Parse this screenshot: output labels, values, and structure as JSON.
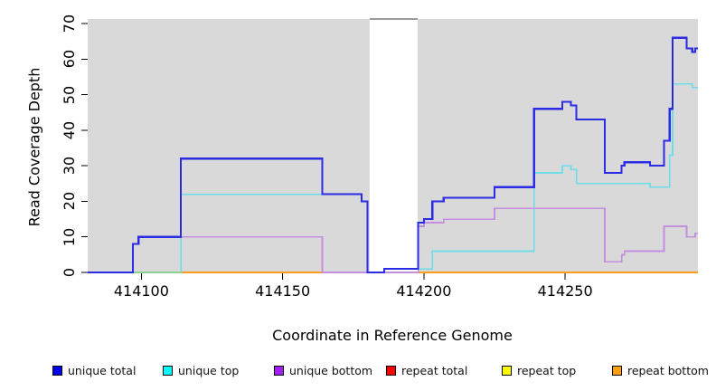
{
  "chart_data": {
    "type": "line",
    "line_style": "step",
    "title": "",
    "xlabel": "Coordinate in Reference Genome",
    "ylabel": "Read Coverage Depth",
    "xlim": [
      414081,
      414297
    ],
    "ylim": [
      0,
      70
    ],
    "x_ticks": [
      414100,
      414150,
      414200,
      414250
    ],
    "y_ticks": [
      0,
      10,
      20,
      30,
      40,
      50,
      60,
      70
    ],
    "plot_bg_color": "#d9d9d9",
    "gap_region": {
      "from": 414180.8,
      "to": 414197.8,
      "color": "#ffffff",
      "top_border_color": "#9b9b9b"
    },
    "legend": [
      {
        "label": "unique total",
        "color": "#0000ee"
      },
      {
        "label": "unique top",
        "color": "#00ffff"
      },
      {
        "label": "unique bottom",
        "color": "#a020f0"
      },
      {
        "label": "repeat total",
        "color": "#ff0000"
      },
      {
        "label": "repeat top",
        "color": "#ffff00"
      },
      {
        "label": "repeat bottom",
        "color": "#ffa013"
      }
    ],
    "series": [
      {
        "name": "repeat total",
        "color": "#ff2222",
        "width": 1.6,
        "steps": [
          [
            414097,
            0
          ]
        ]
      },
      {
        "name": "repeat top",
        "color": "#f0f060",
        "width": 1.6,
        "steps": [
          [
            414097,
            0
          ]
        ]
      },
      {
        "name": "repeat bottom",
        "color": "#ff9d1c",
        "width": 2,
        "steps": [
          [
            414097,
            0
          ]
        ]
      },
      {
        "name": "unique top",
        "color": "#6fdde8",
        "width": 1.7,
        "steps": [
          [
            414081,
            0
          ],
          [
            414114,
            22
          ],
          [
            414178,
            20
          ],
          [
            414180,
            0
          ],
          [
            414186,
            1
          ],
          [
            414203,
            6
          ],
          [
            414239,
            28
          ],
          [
            414249,
            30
          ],
          [
            414252,
            29
          ],
          [
            414254,
            25
          ],
          [
            414280,
            24
          ],
          [
            414287,
            33
          ],
          [
            414288,
            53
          ],
          [
            414295,
            52
          ]
        ]
      },
      {
        "name": "unique-top-over-repeat-top-overlap",
        "color": "#8ccf96",
        "width": 1.8,
        "steps": [
          [
            414097,
            0
          ]
        ],
        "end": 414114
      },
      {
        "name": "unique bottom",
        "color": "#c390e0",
        "width": 1.7,
        "steps": [
          [
            414081,
            0
          ],
          [
            414097,
            8
          ],
          [
            414099,
            10
          ],
          [
            414164,
            0
          ],
          [
            414198,
            13
          ],
          [
            414200,
            14
          ],
          [
            414207,
            15
          ],
          [
            414225,
            18
          ],
          [
            414264,
            3
          ],
          [
            414270,
            5
          ],
          [
            414271,
            6
          ],
          [
            414285,
            13
          ],
          [
            414293,
            10
          ],
          [
            414296,
            11
          ]
        ]
      },
      {
        "name": "unique total",
        "color": "#2c2ce4",
        "width": 2.2,
        "steps": [
          [
            414081,
            0
          ],
          [
            414097,
            8
          ],
          [
            414099,
            10
          ],
          [
            414114,
            32
          ],
          [
            414164,
            22
          ],
          [
            414178,
            20
          ],
          [
            414180,
            0
          ],
          [
            414186,
            1
          ],
          [
            414198,
            14
          ],
          [
            414200,
            15
          ],
          [
            414203,
            20
          ],
          [
            414207,
            21
          ],
          [
            414225,
            24
          ],
          [
            414239,
            46
          ],
          [
            414249,
            48
          ],
          [
            414252,
            47
          ],
          [
            414254,
            43
          ],
          [
            414264,
            28
          ],
          [
            414270,
            30
          ],
          [
            414271,
            31
          ],
          [
            414280,
            30
          ],
          [
            414285,
            37
          ],
          [
            414287,
            46
          ],
          [
            414288,
            66
          ],
          [
            414293,
            63
          ],
          [
            414295,
            62
          ],
          [
            414296,
            63
          ]
        ]
      }
    ]
  }
}
